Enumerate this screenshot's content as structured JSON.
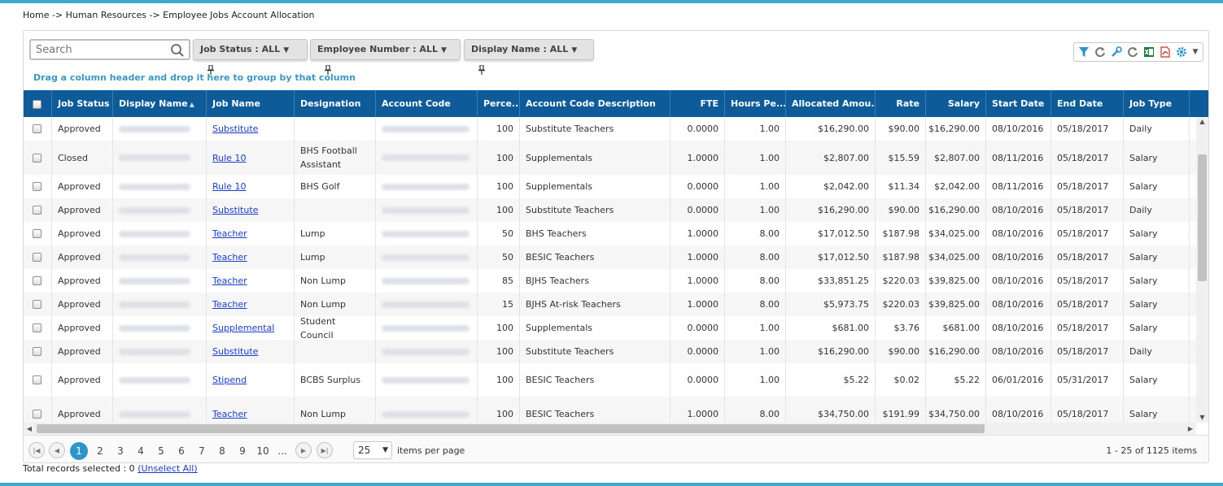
{
  "breadcrumb": "Home -> Human Resources -> Employee Jobs Account Allocation",
  "search": {
    "placeholder": "Search"
  },
  "filters": [
    {
      "label": "Job Status : ALL"
    },
    {
      "label": "Employee Number : ALL"
    },
    {
      "label": "Display Name : ALL"
    }
  ],
  "group_hint": "Drag a column header and drop it here to group by that column",
  "columns": [
    "Job Status",
    "Display Name",
    "Job Name",
    "Designation",
    "Account Code",
    "Perce...",
    "Account Code Description",
    "FTE",
    "Hours Pe...",
    "Allocated Amou...",
    "Rate",
    "Salary",
    "Start Date",
    "End Date",
    "Job Type"
  ],
  "rows": [
    {
      "status": "Approved",
      "job": "Substitute",
      "designation": "",
      "percent": "100",
      "desc": "Substitute Teachers",
      "fte": "0.0000",
      "hours": "1.00",
      "allocated": "$16,290.00",
      "rate": "$90.00",
      "salary": "$16,290.00",
      "start": "08/10/2016",
      "end": "05/18/2017",
      "type": "Daily"
    },
    {
      "status": "Closed",
      "job": "Rule 10",
      "designation": "BHS Football Assistant",
      "percent": "100",
      "desc": "Supplementals",
      "fte": "1.0000",
      "hours": "1.00",
      "allocated": "$2,807.00",
      "rate": "$15.59",
      "salary": "$2,807.00",
      "start": "08/11/2016",
      "end": "05/18/2017",
      "type": "Salary"
    },
    {
      "status": "Approved",
      "job": "Rule 10",
      "designation": "BHS Golf",
      "percent": "100",
      "desc": "Supplementals",
      "fte": "0.0000",
      "hours": "1.00",
      "allocated": "$2,042.00",
      "rate": "$11.34",
      "salary": "$2,042.00",
      "start": "08/11/2016",
      "end": "05/18/2017",
      "type": "Salary"
    },
    {
      "status": "Approved",
      "job": "Substitute",
      "designation": "",
      "percent": "100",
      "desc": "Substitute Teachers",
      "fte": "0.0000",
      "hours": "1.00",
      "allocated": "$16,290.00",
      "rate": "$90.00",
      "salary": "$16,290.00",
      "start": "08/10/2016",
      "end": "05/18/2017",
      "type": "Daily"
    },
    {
      "status": "Approved",
      "job": "Teacher",
      "designation": "Lump",
      "percent": "50",
      "desc": "BHS Teachers",
      "fte": "1.0000",
      "hours": "8.00",
      "allocated": "$17,012.50",
      "rate": "$187.98",
      "salary": "$34,025.00",
      "start": "08/10/2016",
      "end": "05/18/2017",
      "type": "Salary"
    },
    {
      "status": "Approved",
      "job": "Teacher",
      "designation": "Lump",
      "percent": "50",
      "desc": "BESIC Teachers",
      "fte": "1.0000",
      "hours": "8.00",
      "allocated": "$17,012.50",
      "rate": "$187.98",
      "salary": "$34,025.00",
      "start": "08/10/2016",
      "end": "05/18/2017",
      "type": "Salary"
    },
    {
      "status": "Approved",
      "job": "Teacher",
      "designation": "Non Lump",
      "percent": "85",
      "desc": "BJHS Teachers",
      "fte": "1.0000",
      "hours": "8.00",
      "allocated": "$33,851.25",
      "rate": "$220.03",
      "salary": "$39,825.00",
      "start": "08/10/2016",
      "end": "05/18/2017",
      "type": "Salary"
    },
    {
      "status": "Approved",
      "job": "Teacher",
      "designation": "Non Lump",
      "percent": "15",
      "desc": "BJHS At-risk Teachers",
      "fte": "1.0000",
      "hours": "8.00",
      "allocated": "$5,973.75",
      "rate": "$220.03",
      "salary": "$39,825.00",
      "start": "08/10/2016",
      "end": "05/18/2017",
      "type": "Salary"
    },
    {
      "status": "Approved",
      "job": "Supplemental",
      "designation": "Student Council",
      "percent": "100",
      "desc": "Supplementals",
      "fte": "0.0000",
      "hours": "1.00",
      "allocated": "$681.00",
      "rate": "$3.76",
      "salary": "$681.00",
      "start": "08/10/2016",
      "end": "05/18/2017",
      "type": "Salary"
    },
    {
      "status": "Approved",
      "job": "Substitute",
      "designation": "",
      "percent": "100",
      "desc": "Substitute Teachers",
      "fte": "0.0000",
      "hours": "1.00",
      "allocated": "$16,290.00",
      "rate": "$90.00",
      "salary": "$16,290.00",
      "start": "08/10/2016",
      "end": "05/18/2017",
      "type": "Daily"
    },
    {
      "status": "Approved",
      "job": "Stipend",
      "designation": "BCBS Surplus",
      "percent": "100",
      "desc": "BESIC Teachers",
      "fte": "0.0000",
      "hours": "1.00",
      "allocated": "$5.22",
      "rate": "$0.02",
      "salary": "$5.22",
      "start": "06/01/2016",
      "end": "05/31/2017",
      "type": "Salary"
    },
    {
      "status": "Approved",
      "job": "Teacher",
      "designation": "Non Lump",
      "percent": "100",
      "desc": "BESIC Teachers",
      "fte": "1.0000",
      "hours": "8.00",
      "allocated": "$34,750.00",
      "rate": "$191.99",
      "salary": "$34,750.00",
      "start": "08/10/2016",
      "end": "05/18/2017",
      "type": "Salary"
    }
  ],
  "pager": {
    "pages": [
      "1",
      "2",
      "3",
      "4",
      "5",
      "6",
      "7",
      "8",
      "9",
      "10",
      "..."
    ],
    "current": "1",
    "page_size": "25",
    "items_per_page": "items per page",
    "info": "1 - 25 of 1125 items"
  },
  "footer": {
    "text": "Total records selected : 0",
    "link": "(Unselect All)"
  },
  "colors": {
    "header_bg": "#0d5b99",
    "accent": "#2b95cc",
    "top_bar": "#3fa9c9",
    "link": "#1a3ccc"
  },
  "icons": [
    "search-icon",
    "pin-icon",
    "filter-icon",
    "refresh-icon",
    "wrench-icon",
    "excel-icon",
    "pdf-icon",
    "gear-icon"
  ]
}
